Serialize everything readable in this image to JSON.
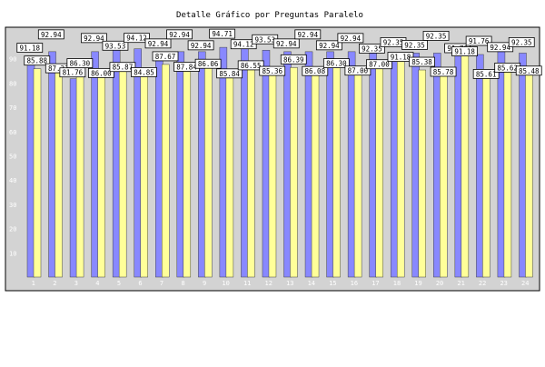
{
  "chart_data": {
    "type": "bar",
    "title": "Detalle Gráfico por Preguntas Paralelo",
    "xlabel": "",
    "ylabel": "",
    "ylim": [
      0,
      100
    ],
    "yticks": [
      10,
      20,
      30,
      40,
      50,
      60,
      70,
      80,
      90
    ],
    "grid": false,
    "legend": "none",
    "categories": [
      "1",
      "2",
      "3",
      "4",
      "5",
      "6",
      "7",
      "8",
      "9",
      "10",
      "11",
      "12",
      "13",
      "14",
      "15",
      "16",
      "17",
      "18",
      "19",
      "20",
      "21",
      "22",
      "23",
      "24"
    ],
    "series": [
      {
        "color": "#8888ff",
        "values": [
          91.18,
          92.94,
          81.76,
          92.94,
          93.53,
          94.12,
          92.94,
          92.94,
          92.94,
          94.71,
          94.12,
          93.53,
          92.94,
          92.94,
          92.94,
          92.94,
          92.35,
          92.35,
          92.35,
          92.35,
          91.76,
          91.76,
          92.94,
          92.35
        ]
      },
      {
        "color": "#ffff99",
        "values": [
          85.88,
          87.22,
          86.3,
          86.0,
          85.87,
          84.85,
          87.67,
          87.84,
          86.06,
          85.84,
          86.55,
          85.36,
          86.39,
          86.08,
          86.3,
          87.0,
          87.0,
          91.18,
          85.38,
          85.78,
          91.18,
          85.61,
          85.62,
          85.48
        ]
      }
    ]
  },
  "colors": {
    "page_background": "#ffffff",
    "plot_background": "#d3d3d3",
    "series_1": "#8888ff",
    "series_2": "#ffff99"
  }
}
